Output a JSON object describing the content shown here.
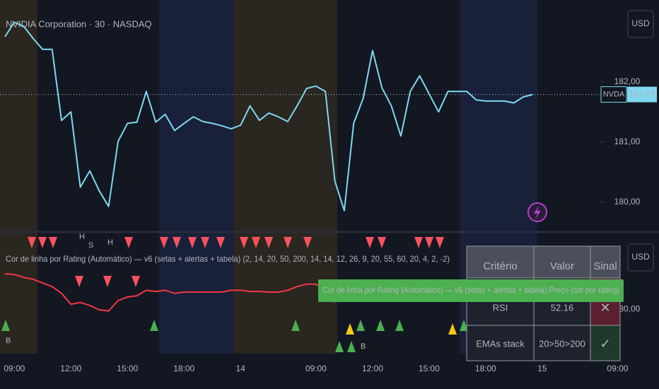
{
  "header": {
    "title": "NVIDIA Corporation · 30 · NASDAQ",
    "currency_button": "USD"
  },
  "chart_data": [
    {
      "type": "line",
      "categories": [
        null,
        "09:00",
        null,
        null,
        null,
        null,
        null,
        "12:00",
        null,
        null,
        null,
        null,
        null,
        "15:00",
        null,
        null,
        null,
        null,
        null,
        "18:00",
        null,
        null,
        null,
        null,
        null,
        "14",
        null,
        null,
        null,
        null,
        null,
        null,
        null,
        "09:00",
        null,
        null,
        null,
        null,
        null,
        "12:00",
        null,
        null,
        null,
        null,
        null,
        "15:00",
        null,
        null,
        null,
        null,
        null,
        "18:00",
        null,
        null,
        null,
        null,
        null,
        "15",
        null,
        null,
        null,
        null,
        null,
        null,
        null,
        "09:00"
      ],
      "series": [
        {
          "name": "NVDA",
          "color": "#7fd8ef",
          "values": [
            182.75,
            182.99,
            182.92,
            182.72,
            182.54,
            182.54,
            181.36,
            181.5,
            180.25,
            180.52,
            180.19,
            179.93,
            181.01,
            181.31,
            181.33,
            181.84,
            181.33,
            181.46,
            181.19,
            181.31,
            181.42,
            181.34,
            181.31,
            181.27,
            181.22,
            181.28,
            181.6,
            181.36,
            181.48,
            181.42,
            181.34,
            181.6,
            181.89,
            181.93,
            181.84,
            180.35,
            179.86,
            181.31,
            181.72,
            182.52,
            181.9,
            181.6,
            181.1,
            181.84,
            182.1,
            181.8,
            181.5,
            181.84,
            181.84,
            181.84,
            181.7,
            181.68,
            181.68,
            181.68,
            181.65,
            181.75,
            181.79,
            null,
            null,
            null,
            null,
            null,
            null,
            null,
            null,
            null
          ]
        }
      ],
      "ylim": [
        179.54,
        183.36
      ],
      "yticks": [
        {
          "value": 180,
          "label": "180,00"
        },
        {
          "value": 181,
          "label": "181,00"
        },
        {
          "value": 182,
          "label": "182,00"
        }
      ],
      "last_value": {
        "value": 181.79,
        "label": "181,79"
      }
    },
    {
      "type": "line",
      "title": "Cor de linha por Rating (Automático) — v6 (setas + alertas + tabela) (2, 14, 20, 50, 200, 14, 14, 12, 26, 9, 20, 55, 60, 20, 4, 2, -2)",
      "currency_button": "USD",
      "series": [
        {
          "name": "Cor de linha por Rating (Automático) — v6 (setas + alertas + tabela):Preço (cor por rating)",
          "color": "#f23645",
          "values": [
            180.58,
            180.57,
            180.52,
            180.49,
            180.43,
            180.37,
            180.26,
            180.08,
            180.11,
            180.06,
            179.99,
            179.97,
            180.14,
            180.2,
            180.22,
            180.31,
            180.29,
            180.31,
            180.26,
            180.28,
            180.28,
            180.28,
            180.28,
            180.28,
            180.31,
            180.31,
            180.29,
            180.29,
            180.28,
            180.28,
            180.31,
            180.37,
            180.41,
            180.41,
            180.31,
            180.11,
            null,
            null,
            null,
            null,
            null,
            null,
            null,
            null,
            null,
            null,
            null,
            null,
            null,
            null,
            null,
            null,
            null,
            null,
            null,
            null,
            null,
            null,
            null,
            null,
            null,
            null,
            null,
            null,
            null,
            null
          ]
        }
      ],
      "ylim": [
        179.27,
        181.22
      ],
      "yticks": [
        {
          "value": 180,
          "label": "180,00"
        }
      ],
      "annotations": [
        "H",
        "S",
        "H",
        "B",
        "B"
      ],
      "table": {
        "header": [
          "Critério",
          "Valor",
          "Sinal"
        ],
        "rows": [
          [
            "RSI",
            "52.16",
            "✕"
          ],
          [
            "EMAs stack",
            "20>50>200",
            "✓"
          ]
        ]
      }
    }
  ]
}
